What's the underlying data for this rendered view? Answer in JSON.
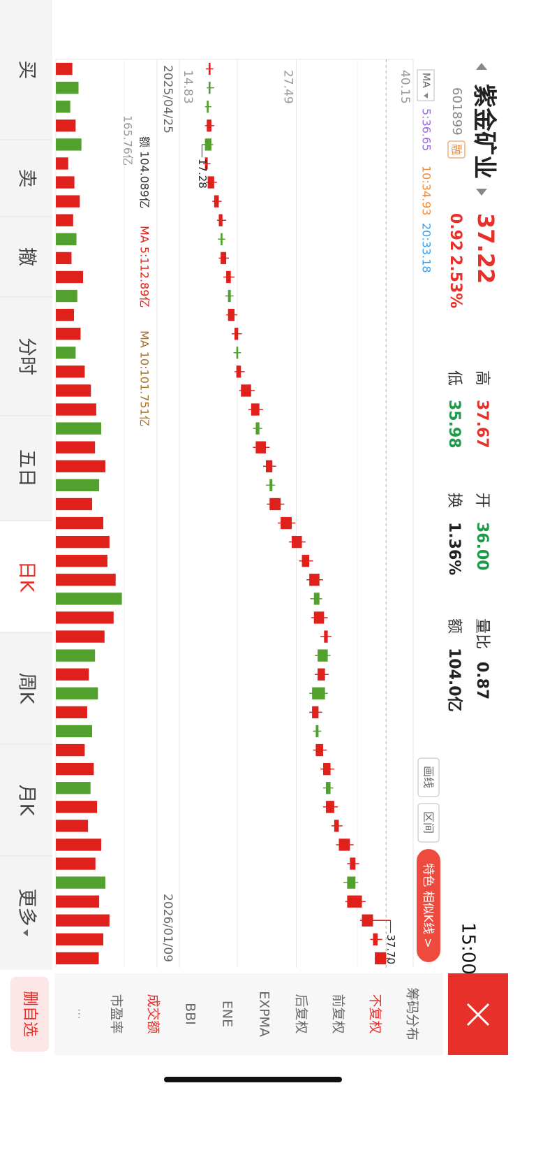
{
  "header": {
    "name": "紫金矿业",
    "code": "601899",
    "tag": "融",
    "price": "37.22",
    "change": "0.92",
    "change_pct": "2.53%",
    "time": "15:00",
    "stats": [
      {
        "label": "高",
        "value": "37.67"
      },
      {
        "label": "低",
        "value": "35.98"
      },
      {
        "label": "开",
        "value": "36.00"
      },
      {
        "label": "换",
        "value": "1.36%"
      },
      {
        "label": "量比",
        "value": "0.87"
      },
      {
        "label": "额",
        "value": "104.0亿"
      }
    ]
  },
  "toolbar": {
    "buttons": [
      "画线",
      "区间"
    ],
    "feature": "特色 相似K线 >"
  },
  "chart_data": [
    {
      "type": "candlestick",
      "categories": [
        "2025/04/25",
        null,
        null,
        null,
        null,
        null,
        null,
        null,
        null,
        null,
        null,
        null,
        null,
        null,
        null,
        null,
        null,
        null,
        null,
        null,
        null,
        null,
        null,
        null,
        null,
        null,
        null,
        null,
        null,
        null,
        null,
        null,
        null,
        null,
        null,
        null,
        null,
        null,
        null,
        null,
        null,
        null,
        null,
        null,
        null,
        null,
        null,
        "2026/01/09"
      ],
      "open": [
        18.0,
        18.2,
        18.0,
        17.8,
        18.3,
        17.6,
        17.9,
        18.6,
        19.1,
        19.5,
        19.3,
        19.9,
        20.4,
        20.1,
        20.8,
        21.2,
        21.0,
        21.5,
        22.6,
        23.5,
        23.1,
        24.2,
        24.9,
        24.6,
        25.8,
        27.0,
        28.1,
        28.9,
        30.0,
        29.4,
        30.5,
        30.9,
        29.8,
        30.6,
        29.2,
        29.9,
        29.6,
        30.4,
        31.2,
        30.7,
        31.6,
        32.1,
        33.3,
        33.9,
        33.0,
        34.6,
        35.8,
        36.0
      ],
      "high": [
        18.5,
        18.6,
        18.3,
        18.6,
        18.5,
        18.2,
        18.9,
        19.4,
        19.9,
        19.8,
        20.2,
        20.8,
        20.7,
        21.1,
        21.6,
        21.5,
        21.9,
        23.0,
        23.9,
        23.8,
        24.6,
        25.3,
        25.2,
        26.2,
        27.4,
        28.5,
        29.3,
        30.4,
        30.3,
        30.9,
        31.3,
        31.2,
        31.0,
        30.9,
        30.3,
        30.2,
        30.8,
        31.6,
        31.5,
        32.0,
        32.5,
        33.7,
        34.3,
        34.2,
        35.0,
        37.7,
        36.8,
        37.67
      ],
      "low": [
        17.7,
        17.8,
        17.6,
        17.6,
        17.28,
        17.4,
        17.7,
        18.4,
        18.9,
        19.0,
        19.1,
        19.6,
        19.8,
        19.9,
        20.5,
        20.7,
        20.8,
        21.3,
        22.3,
        22.8,
        22.8,
        23.9,
        24.2,
        24.3,
        25.5,
        26.7,
        27.8,
        28.6,
        29.0,
        29.1,
        30.1,
        29.5,
        29.5,
        28.9,
        28.9,
        29.3,
        29.3,
        30.1,
        30.4,
        30.4,
        31.3,
        31.8,
        33.0,
        32.6,
        32.8,
        34.4,
        35.5,
        35.98
      ],
      "close": [
        18.2,
        18.0,
        17.8,
        18.3,
        17.6,
        17.9,
        18.6,
        19.1,
        19.5,
        19.3,
        19.9,
        20.4,
        20.1,
        20.8,
        21.2,
        21.0,
        21.5,
        22.6,
        23.5,
        23.1,
        24.2,
        24.9,
        24.6,
        25.8,
        27.0,
        28.1,
        28.9,
        30.0,
        29.4,
        30.5,
        30.9,
        29.8,
        30.6,
        29.2,
        29.9,
        29.6,
        30.4,
        31.2,
        30.7,
        31.6,
        32.1,
        33.3,
        33.9,
        33.0,
        34.6,
        35.8,
        36.3,
        37.22
      ],
      "up_color": "#e0201b",
      "down_color": "#52a02e",
      "ylim": [
        14.83,
        40.15
      ],
      "yticks": [
        14.83,
        27.49,
        40.15
      ],
      "ma_legend": {
        "label": "MA",
        "items": [
          {
            "text": "5:36.65",
            "color": "#9b6bd6"
          },
          {
            "text": "10:34.93",
            "color": "#f08c3c"
          },
          {
            "text": "20:33.18",
            "color": "#3aa0e8"
          }
        ]
      },
      "high_label": "37.70",
      "low_label": "17.28"
    },
    {
      "type": "bar",
      "legend": [
        {
          "text": "额 104.089亿",
          "color": "#333333"
        },
        {
          "text": "MA 5:112.89亿",
          "color": "#e0201b"
        },
        {
          "text": "MA 10:101.751亿",
          "color": "#a4742c"
        }
      ],
      "values": [
        40,
        55,
        35,
        48,
        62,
        30,
        45,
        58,
        42,
        50,
        38,
        66,
        52,
        44,
        60,
        48,
        70,
        85,
        98,
        110,
        95,
        120,
        105,
        88,
        115,
        130,
        125,
        145,
        160,
        140,
        118,
        95,
        80,
        102,
        76,
        88,
        70,
        92,
        84,
        100,
        78,
        110,
        96,
        120,
        105,
        130,
        115,
        104.089
      ],
      "ylim": [
        0,
        165.76
      ],
      "yticks": [
        {
          "value": 165.76,
          "label": "165.76亿"
        }
      ]
    }
  ],
  "side_menu": {
    "items": [
      "筹码分布",
      "不复权",
      "前复权",
      "后复权",
      "EXPMA",
      "ENE",
      "BBI",
      "成交额",
      "市盈率"
    ],
    "action": "删自选"
  },
  "tabs": [
    "买",
    "卖",
    "撤",
    "分时",
    "五日",
    "日K",
    "周K",
    "月K",
    "更多"
  ]
}
